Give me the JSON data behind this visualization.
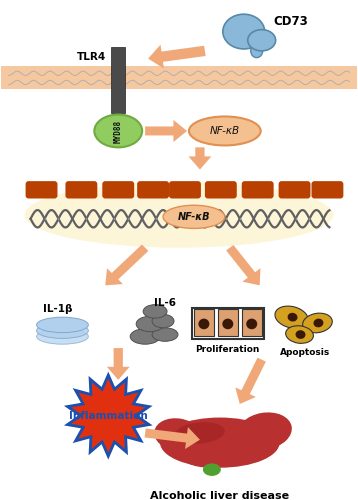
{
  "background_color": "#ffffff",
  "fig_width": 3.58,
  "fig_height": 5.0,
  "dpi": 100,
  "labels": {
    "cd73": "CD73",
    "tlr4": "TLR4",
    "myd88": "MYD88",
    "nfkb_oval": "NF-κB",
    "nfkb_dna": "NF-κB",
    "il1b": "IL-1β",
    "il6": "IL-6",
    "inflammation": "Inflammation",
    "proliferation": "Proliferation",
    "apoptosis": "Apoptosis",
    "liver": "Alcoholic liver disease"
  },
  "colors": {
    "membrane_fill": "#f5c8a0",
    "wave_color": "#b0b0b0",
    "tlr4_rect": "#4a4a4a",
    "myd88_fill": "#90cc60",
    "myd88_border": "#70aa40",
    "nfkb_oval_fill": "#f5c090",
    "nfkb_oval_border": "#e09050",
    "dna_bg_fill": "#fdf5d8",
    "dna_rod_color": "#b84000",
    "dna_strand": "#606060",
    "dna_rung": "#909090",
    "inflammation_fill": "#e03010",
    "inflammation_border": "#1a50b0",
    "inflammation_text": "#1a50b0",
    "arrow_color": "#f0a878",
    "cell_fill": "#dda070",
    "cell_border": "#333333",
    "cell_nucleus": "#3a1808",
    "apoptosis_fill": "#d4a020",
    "liver_color": "#b83030",
    "liver_dark": "#901818",
    "liver_gallbladder": "#50a030",
    "il1b_color": "#b0d0ee",
    "il1b_border": "#80a8cc",
    "il6_color": "#787878",
    "il6_border": "#505050",
    "cd73_color": "#8ab8d8",
    "cd73_border": "#5888a8"
  }
}
